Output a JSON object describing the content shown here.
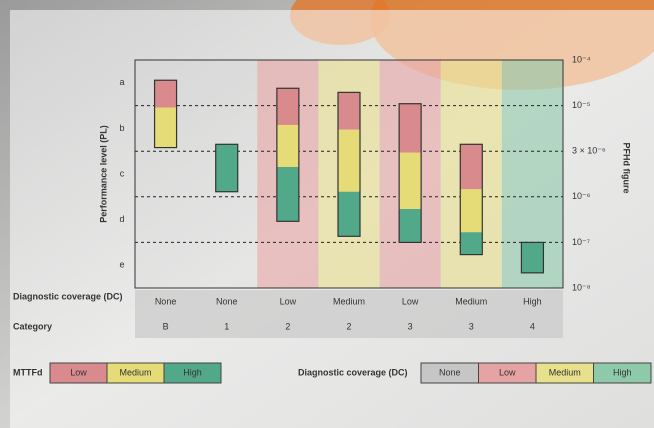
{
  "chart_data": {
    "type": "range-bar",
    "y_label": "Performance level (PL)",
    "y2_label": "PFHd figure",
    "pl_levels": [
      "a",
      "b",
      "c",
      "d",
      "e"
    ],
    "row_labels": {
      "dc": "Diagnostic coverage (DC)",
      "category": "Category"
    },
    "dc": [
      "None",
      "None",
      "Low",
      "Medium",
      "Low",
      "Medium",
      "High"
    ],
    "categories": [
      "B",
      "1",
      "2",
      "2",
      "3",
      "3",
      "4"
    ],
    "ylim": [
      1e-08,
      0.0001
    ],
    "log_scale": true,
    "yticks": [
      {
        "value": 0.0001,
        "label": "10⁻⁴"
      },
      {
        "value": 1e-05,
        "label": "10⁻⁵"
      },
      {
        "value": 3e-06,
        "label": "3 × 10⁻⁶"
      },
      {
        "value": 1e-06,
        "label": "10⁻⁶"
      },
      {
        "value": 1e-07,
        "label": "10⁻⁷"
      },
      {
        "value": 1e-08,
        "label": "10⁻⁸"
      }
    ],
    "grid": true,
    "legend_title": "MTTFd",
    "series": [
      {
        "name": "Low",
        "color": "#d98a8c",
        "values": [
          [
            9.5e-06,
            3.6e-05
          ],
          null,
          [
            6e-06,
            2.4e-05
          ],
          [
            5.3e-06,
            1.95e-05
          ],
          [
            2.9e-06,
            1.1e-05
          ],
          [
            1.2e-06,
            3.6e-06
          ],
          null
        ]
      },
      {
        "name": "Medium",
        "color": "#e5dc78",
        "values": [
          [
            3.3e-06,
            9.5e-06
          ],
          null,
          [
            2.05e-06,
            6e-06
          ],
          [
            1.13e-06,
            5.3e-06
          ],
          [
            5.4e-07,
            2.9e-06
          ],
          [
            1.67e-07,
            1.2e-06
          ],
          null
        ]
      },
      {
        "name": "High",
        "color": "#52a98a",
        "values": [
          null,
          [
            1.13e-06,
            3.6e-06
          ],
          [
            2.9e-07,
            2.05e-06
          ],
          [
            1.36e-07,
            1.13e-06
          ],
          [
            1e-07,
            5.4e-07
          ],
          [
            5.4e-08,
            1.67e-07
          ],
          [
            2.15e-08,
            1e-07
          ]
        ]
      }
    ],
    "dc_legend": {
      "title": "Diagnostic coverage (DC)",
      "items": [
        {
          "label": "None",
          "color": "#c6c6c6"
        },
        {
          "label": "Low",
          "color": "#e6a3a3"
        },
        {
          "label": "Medium",
          "color": "#e7e08c"
        },
        {
          "label": "High",
          "color": "#8ec9aa"
        }
      ]
    }
  }
}
